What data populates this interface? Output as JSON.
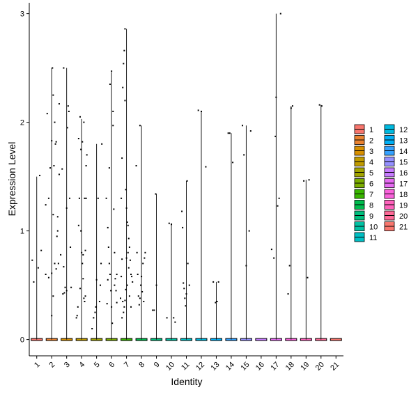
{
  "chart_data": {
    "type": "violin",
    "title": "",
    "xlabel": "Identity",
    "ylabel": "Expression Level",
    "ylim": [
      -0.15,
      3.1
    ],
    "yticks": [
      0,
      1,
      2,
      3
    ],
    "categories": [
      "1",
      "2",
      "3",
      "4",
      "5",
      "6",
      "7",
      "8",
      "9",
      "10",
      "11",
      "12",
      "13",
      "14",
      "15",
      "16",
      "17",
      "18",
      "19",
      "20",
      "21"
    ],
    "colors": [
      "#F8766D",
      "#EA8331",
      "#D89000",
      "#C09B00",
      "#A3A500",
      "#7CAE00",
      "#39B600",
      "#00BB4E",
      "#00BF7D",
      "#00C1A3",
      "#00BFC4",
      "#00BAE0",
      "#00B0F6",
      "#35A2FF",
      "#9590FF",
      "#C77CFF",
      "#E76BF3",
      "#FA62DB",
      "#FF62BC",
      "#FF6A98",
      "#F8766D"
    ],
    "violin_max": [
      1.5,
      2.5,
      2.5,
      2.03,
      1.8,
      2.46,
      2.86,
      1.97,
      1.34,
      1.07,
      1.46,
      2.1,
      0.53,
      1.9,
      1.97,
      0,
      3.0,
      2.15,
      1.47,
      2.16,
      0
    ],
    "points": [
      [
        [
          0.7,
          0.73
        ],
        [
          1.1,
          0.66
        ],
        [
          0.8,
          0.53
        ],
        [
          1.3,
          0.82
        ],
        [
          1.2,
          1.51
        ],
        [
          1.6,
          0.6
        ],
        [
          1.8,
          0.57
        ],
        [
          2.1,
          1.15
        ],
        [
          2.4,
          1.0
        ],
        [
          2.0,
          0.61
        ]
      ],
      [
        [
          1.6,
          1.24
        ],
        [
          1.8,
          1.3
        ],
        [
          1.7,
          2.08
        ],
        [
          1.9,
          1.58
        ],
        [
          2.0,
          1.83
        ],
        [
          2.1,
          2.25
        ],
        [
          2.2,
          2.0
        ],
        [
          2.3,
          1.82
        ],
        [
          2.5,
          1.52
        ],
        [
          2.2,
          0.7
        ],
        [
          2.3,
          0.65
        ],
        [
          2.6,
          0.78
        ],
        [
          2.4,
          1.13
        ],
        [
          2.1,
          0.4
        ],
        [
          2.0,
          0.22
        ],
        [
          2.8,
          0.67
        ],
        [
          2.7,
          1.57
        ],
        [
          2.5,
          2.17
        ],
        [
          2.05,
          2.5
        ],
        [
          2.15,
          1.6
        ],
        [
          2.35,
          0.95
        ],
        [
          2.45,
          0.7
        ],
        [
          2.25,
          1.8
        ]
      ],
      [
        [
          2.75,
          0.42
        ],
        [
          2.85,
          0.43
        ],
        [
          2.9,
          0.48
        ],
        [
          3.0,
          1.21
        ],
        [
          3.05,
          1.95
        ],
        [
          3.1,
          2.15
        ],
        [
          3.15,
          2.1
        ],
        [
          3.2,
          1.3
        ],
        [
          3.0,
          0.45
        ],
        [
          2.8,
          2.5
        ],
        [
          3.25,
          0.85
        ],
        [
          3.3,
          0.48
        ]
      ],
      [
        [
          3.65,
          0.2
        ],
        [
          3.7,
          0.22
        ],
        [
          3.75,
          0.3
        ],
        [
          3.8,
          1.85
        ],
        [
          3.9,
          2.05
        ],
        [
          3.85,
          1.3
        ],
        [
          3.95,
          1.0
        ],
        [
          4.0,
          0.8
        ],
        [
          4.05,
          0.7
        ],
        [
          4.1,
          0.56
        ],
        [
          4.15,
          0.38
        ],
        [
          4.2,
          0.35
        ],
        [
          4.25,
          0.4
        ],
        [
          4.3,
          1.6
        ],
        [
          4.35,
          1.7
        ],
        [
          4.05,
          1.82
        ],
        [
          3.95,
          1.75
        ],
        [
          4.2,
          1.3
        ],
        [
          3.9,
          0.47
        ],
        [
          4.1,
          0.78
        ],
        [
          4.15,
          2.0
        ],
        [
          4.3,
          1.3
        ],
        [
          3.8,
          1.05
        ],
        [
          4.25,
          0.82
        ]
      ],
      [
        [
          4.7,
          0.1
        ],
        [
          4.8,
          0.2
        ],
        [
          4.9,
          0.25
        ],
        [
          5.0,
          0.55
        ],
        [
          5.1,
          1.3
        ],
        [
          5.2,
          0.35
        ],
        [
          5.3,
          0.7
        ],
        [
          5.35,
          1.8
        ],
        [
          5.25,
          0.5
        ],
        [
          4.95,
          0.3
        ]
      ],
      [
        [
          5.65,
          1.3
        ],
        [
          5.7,
          0.33
        ],
        [
          5.75,
          0.55
        ],
        [
          5.8,
          0.85
        ],
        [
          5.85,
          0.7
        ],
        [
          5.9,
          0.6
        ],
        [
          5.95,
          0.45
        ],
        [
          6.0,
          0.3
        ],
        [
          6.05,
          0.15
        ],
        [
          6.1,
          1.97
        ],
        [
          6.15,
          1.2
        ],
        [
          6.2,
          0.5
        ],
        [
          6.25,
          0.56
        ],
        [
          6.3,
          0.45
        ],
        [
          6.35,
          0.34
        ],
        [
          5.9,
          2.35
        ],
        [
          6.0,
          2.47
        ],
        [
          6.1,
          2.1
        ],
        [
          5.85,
          1.58
        ],
        [
          5.75,
          1.03
        ],
        [
          6.2,
          0.8
        ],
        [
          6.35,
          0.6
        ]
      ],
      [
        [
          6.6,
          0.38
        ],
        [
          6.65,
          1.3
        ],
        [
          6.7,
          1.67
        ],
        [
          6.75,
          2.32
        ],
        [
          6.8,
          2.54
        ],
        [
          6.85,
          2.66
        ],
        [
          6.9,
          2.2
        ],
        [
          6.95,
          1.38
        ],
        [
          7.0,
          1.21
        ],
        [
          7.05,
          1.08
        ],
        [
          7.1,
          1.05
        ],
        [
          7.15,
          0.93
        ],
        [
          7.2,
          0.85
        ],
        [
          7.25,
          0.73
        ],
        [
          7.3,
          0.6
        ],
        [
          7.35,
          0.58
        ],
        [
          7.4,
          0.53
        ],
        [
          7.05,
          0.5
        ],
        [
          6.95,
          0.46
        ],
        [
          6.9,
          0.36
        ],
        [
          6.85,
          0.3
        ],
        [
          6.8,
          0.25
        ],
        [
          6.75,
          0.35
        ],
        [
          6.7,
          0.74
        ],
        [
          6.65,
          0.58
        ],
        [
          7.1,
          0.8
        ],
        [
          7.2,
          0.4
        ],
        [
          6.9,
          2.86
        ],
        [
          7.15,
          0.66
        ],
        [
          6.7,
          0.2
        ],
        [
          7.0,
          0.75
        ],
        [
          7.3,
          0.3
        ]
      ],
      [
        [
          7.65,
          1.6
        ],
        [
          7.7,
          0.8
        ],
        [
          7.75,
          0.6
        ],
        [
          7.8,
          0.4
        ],
        [
          7.85,
          0.32
        ],
        [
          7.9,
          0.38
        ],
        [
          7.95,
          0.5
        ],
        [
          8.0,
          0.58
        ],
        [
          8.1,
          0.7
        ],
        [
          8.2,
          0.75
        ],
        [
          8.25,
          0.8
        ],
        [
          8.15,
          0.35
        ],
        [
          7.9,
          1.97
        ],
        [
          8.05,
          0.44
        ]
      ],
      [
        [
          8.75,
          0.27
        ],
        [
          8.85,
          0.27
        ],
        [
          9.0,
          0.5
        ],
        [
          8.95,
          1.34
        ]
      ],
      [
        [
          9.7,
          0.2
        ],
        [
          9.85,
          1.07
        ],
        [
          10.0,
          1.06
        ],
        [
          10.15,
          0.2
        ],
        [
          10.25,
          0.16
        ]
      ],
      [
        [
          10.7,
          1.18
        ],
        [
          10.75,
          1.03
        ],
        [
          10.8,
          0.52
        ],
        [
          10.85,
          0.47
        ],
        [
          10.9,
          0.38
        ],
        [
          10.95,
          0.31
        ],
        [
          11.0,
          0.42
        ],
        [
          11.05,
          1.46
        ],
        [
          11.1,
          0.7
        ],
        [
          11.2,
          0.5
        ]
      ],
      [
        [
          11.8,
          2.11
        ],
        [
          12.0,
          2.1
        ],
        [
          12.3,
          1.59
        ]
      ],
      [
        [
          12.8,
          0.53
        ],
        [
          12.95,
          0.34
        ],
        [
          13.05,
          0.35
        ],
        [
          13.15,
          0.53
        ]
      ],
      [
        [
          13.8,
          1.9
        ],
        [
          13.9,
          1.9
        ],
        [
          14.1,
          1.63
        ]
      ],
      [
        [
          14.75,
          1.97
        ],
        [
          14.85,
          1.7
        ],
        [
          15.0,
          0.68
        ],
        [
          15.2,
          1.0
        ],
        [
          15.3,
          1.92
        ]
      ],
      [],
      [
        [
          16.7,
          0.83
        ],
        [
          16.85,
          0.75
        ],
        [
          16.95,
          1.87
        ],
        [
          17.0,
          2.23
        ],
        [
          17.1,
          1.23
        ],
        [
          17.2,
          1.3
        ],
        [
          17.3,
          3.0
        ]
      ],
      [
        [
          17.8,
          0.42
        ],
        [
          17.9,
          0.68
        ],
        [
          18.0,
          2.13
        ],
        [
          18.1,
          2.15
        ]
      ],
      [
        [
          18.85,
          1.46
        ],
        [
          19.1,
          0.57
        ],
        [
          19.2,
          1.47
        ]
      ],
      [
        [
          19.9,
          2.16
        ],
        [
          20.05,
          2.15
        ]
      ],
      []
    ],
    "legend": {
      "position": "right",
      "columns": [
        [
          "1",
          "2",
          "3",
          "4",
          "5",
          "6",
          "7",
          "8",
          "9",
          "10",
          "11"
        ],
        [
          "12",
          "13",
          "14",
          "15",
          "16",
          "17",
          "18",
          "19",
          "20",
          "21"
        ]
      ]
    }
  }
}
